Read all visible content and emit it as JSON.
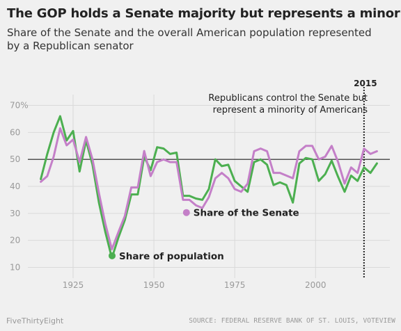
{
  "chart_data": {
    "type": "line",
    "title": "The GOP holds a Senate majority but represents a minority",
    "subtitle": "Share of the Senate and the overall American population represented by a Republican senator",
    "xlim": [
      1911,
      2023
    ],
    "ylim": [
      6,
      74
    ],
    "y_ticks": [
      10,
      20,
      30,
      40,
      50,
      60,
      70
    ],
    "y_tick_labels": [
      "10",
      "20",
      "30",
      "40",
      "50",
      "60",
      "70%"
    ],
    "x_ticks": [
      1925,
      1950,
      1975,
      2000
    ],
    "x_tick_labels": [
      "1925",
      "1950",
      "1975",
      "2000"
    ],
    "grid": true,
    "reference_line": {
      "y": 50
    },
    "marker": {
      "x": 2015,
      "label": "2015"
    },
    "annotation": [
      "Republicans control the Senate but",
      "represent a minority of Americans"
    ],
    "series": [
      {
        "name": "Share of the Senate",
        "color": "#c47fc8",
        "x": [
          1915,
          1917,
          1919,
          1921,
          1923,
          1925,
          1927,
          1929,
          1931,
          1933,
          1935,
          1937,
          1939,
          1941,
          1943,
          1945,
          1947,
          1949,
          1951,
          1953,
          1955,
          1957,
          1959,
          1961,
          1963,
          1965,
          1967,
          1969,
          1971,
          1973,
          1975,
          1977,
          1979,
          1981,
          1983,
          1985,
          1987,
          1989,
          1991,
          1993,
          1995,
          1997,
          1999,
          2001,
          2003,
          2005,
          2007,
          2009,
          2011,
          2013,
          2015,
          2017,
          2019
        ],
        "values": [
          41.7,
          43.8,
          51.0,
          61.5,
          55.2,
          57.3,
          49.0,
          58.3,
          50.0,
          37.5,
          26.0,
          16.7,
          23.0,
          29.0,
          39.6,
          39.6,
          53.1,
          43.8,
          49.0,
          50.0,
          49.0,
          49.0,
          35.0,
          35.0,
          33.0,
          32.0,
          36.0,
          43.0,
          45.0,
          43.0,
          39.0,
          38.0,
          41.0,
          53.0,
          54.0,
          53.0,
          45.0,
          45.0,
          44.0,
          43.0,
          53.0,
          55.0,
          55.0,
          50.0,
          51.0,
          55.0,
          49.0,
          41.0,
          47.0,
          45.0,
          54.0,
          52.0,
          53.0
        ]
      },
      {
        "name": "Share of population",
        "color": "#4caf50",
        "x": [
          1915,
          1917,
          1919,
          1921,
          1923,
          1925,
          1927,
          1929,
          1931,
          1933,
          1935,
          1937,
          1939,
          1941,
          1943,
          1945,
          1947,
          1949,
          1951,
          1953,
          1955,
          1957,
          1959,
          1961,
          1963,
          1965,
          1967,
          1969,
          1971,
          1973,
          1975,
          1977,
          1979,
          1981,
          1983,
          1985,
          1987,
          1989,
          1991,
          1993,
          1995,
          1997,
          1999,
          2001,
          2003,
          2005,
          2007,
          2009,
          2011,
          2013,
          2015,
          2017,
          2019
        ],
        "values": [
          42.7,
          52.0,
          60.0,
          66.0,
          57.0,
          60.5,
          45.5,
          57.0,
          48.0,
          34.0,
          23.0,
          13.5,
          21.0,
          27.5,
          37.0,
          37.0,
          51.0,
          46.0,
          54.5,
          54.0,
          52.0,
          52.5,
          36.5,
          36.5,
          35.5,
          35.0,
          39.0,
          50.0,
          47.5,
          48.0,
          42.0,
          40.0,
          38.0,
          49.0,
          50.0,
          48.0,
          40.5,
          41.5,
          40.5,
          34.0,
          48.5,
          50.5,
          50.0,
          42.0,
          44.5,
          49.5,
          43.5,
          38.0,
          44.0,
          42.0,
          47.0,
          45.0,
          48.5
        ]
      }
    ]
  },
  "footer": {
    "brand": "FiveThirtyEight",
    "source": "SOURCE: FEDERAL RESERVE BANK OF ST. LOUIS, VOTEVIEW"
  }
}
